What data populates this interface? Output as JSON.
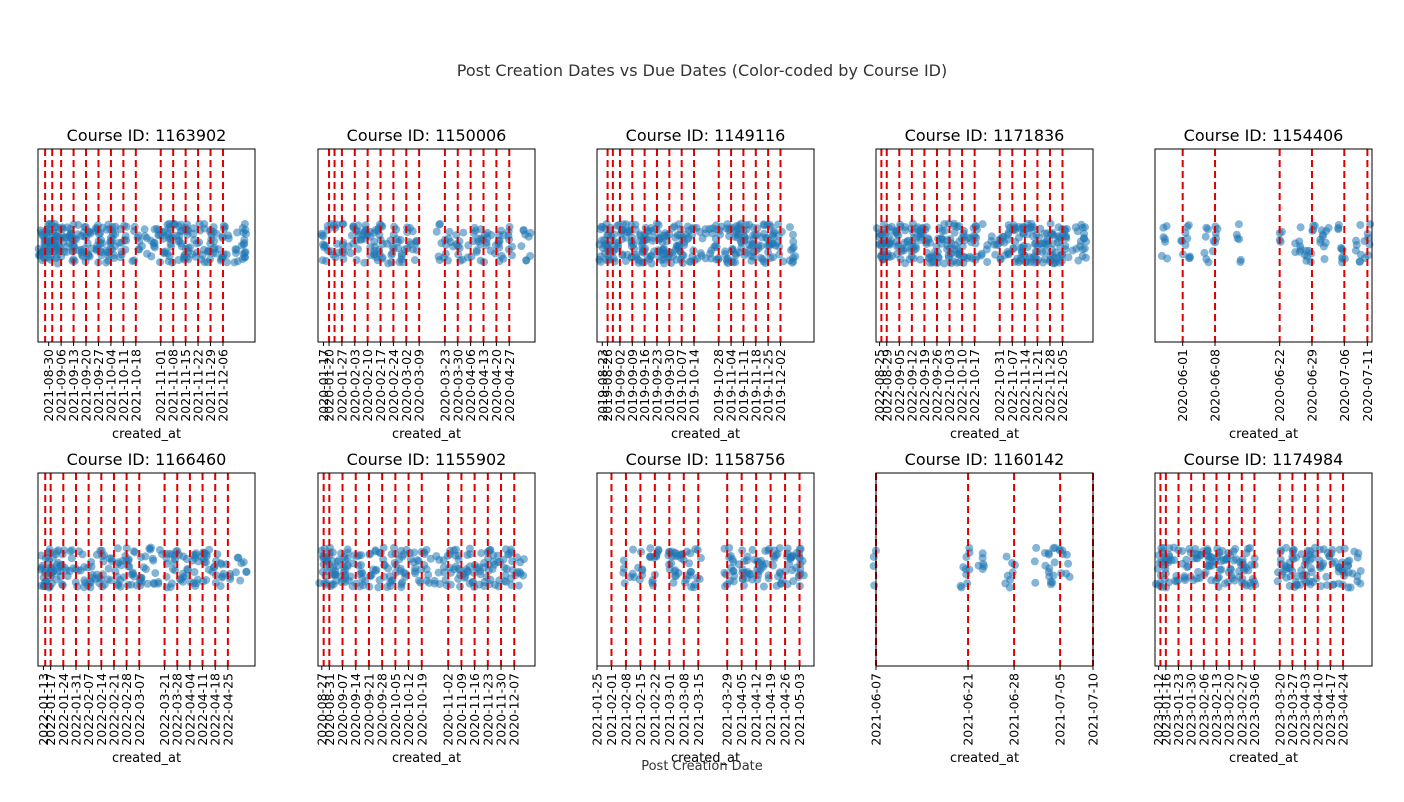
{
  "figure": {
    "title": "Post Creation Dates vs Due Dates (Color-coded by Course ID)",
    "xlabel": "Post Creation Date",
    "point_color": "#1f77b4",
    "due_line_color": "#e00000"
  },
  "chart_data": [
    {
      "type": "scatter",
      "title": "Course ID: 1163902",
      "xlabel": "created_at",
      "x_range": [
        "2021-08-24",
        "2021-12-24"
      ],
      "ticks": [
        "2021-08-30",
        "2021-09-06",
        "2021-09-13",
        "2021-09-20",
        "2021-09-27",
        "2021-10-04",
        "2021-10-11",
        "2021-10-18",
        "2021-11-01",
        "2021-11-08",
        "2021-11-15",
        "2021-11-22",
        "2021-11-29",
        "2021-12-06"
      ],
      "due_dates": [
        "2021-08-28",
        "2021-09-01",
        "2021-09-06",
        "2021-09-13",
        "2021-09-20",
        "2021-09-27",
        "2021-10-04",
        "2021-10-11",
        "2021-10-18",
        "2021-11-01",
        "2021-11-08",
        "2021-11-15",
        "2021-11-22",
        "2021-11-29",
        "2021-12-06"
      ],
      "post_days": [
        "2021-08-25",
        "2021-08-26",
        "2021-08-27",
        "2021-08-28",
        "2021-08-29",
        "2021-08-30",
        "2021-08-31",
        "2021-09-01",
        "2021-09-02",
        "2021-09-03",
        "2021-09-04",
        "2021-09-06",
        "2021-09-07",
        "2021-09-08",
        "2021-09-10",
        "2021-09-12",
        "2021-09-13",
        "2021-09-14",
        "2021-09-16",
        "2021-09-19",
        "2021-09-20",
        "2021-09-21",
        "2021-09-24",
        "2021-09-26",
        "2021-09-27",
        "2021-09-28",
        "2021-10-01",
        "2021-10-03",
        "2021-10-04",
        "2021-10-06",
        "2021-10-10",
        "2021-10-11",
        "2021-10-13",
        "2021-10-16",
        "2021-10-18",
        "2021-10-20",
        "2021-10-23",
        "2021-10-27",
        "2021-10-30",
        "2021-11-01",
        "2021-11-03",
        "2021-11-05",
        "2021-11-07",
        "2021-11-08",
        "2021-11-10",
        "2021-11-12",
        "2021-11-14",
        "2021-11-15",
        "2021-11-17",
        "2021-11-20",
        "2021-11-22",
        "2021-11-24",
        "2021-11-28",
        "2021-11-29",
        "2021-12-01",
        "2021-12-05",
        "2021-12-06",
        "2021-12-08",
        "2021-12-14",
        "2021-12-17",
        "2021-12-18",
        "2021-12-19"
      ]
    },
    {
      "type": "scatter",
      "title": "Course ID: 1150006",
      "xlabel": "created_at",
      "x_range": [
        "2020-01-14",
        "2020-05-11"
      ],
      "ticks": [
        "2020-01-17",
        "2020-01-20",
        "2020-01-27",
        "2020-02-03",
        "2020-02-10",
        "2020-02-17",
        "2020-02-24",
        "2020-03-02",
        "2020-03-09",
        "2020-03-23",
        "2020-03-30",
        "2020-04-06",
        "2020-04-13",
        "2020-04-20",
        "2020-04-27"
      ],
      "due_dates": [
        "2020-01-20",
        "2020-01-23",
        "2020-01-27",
        "2020-02-03",
        "2020-02-10",
        "2020-02-17",
        "2020-02-24",
        "2020-03-02",
        "2020-03-09",
        "2020-03-23",
        "2020-03-30",
        "2020-04-06",
        "2020-04-13",
        "2020-04-20",
        "2020-04-27"
      ],
      "post_days": [
        "2020-01-17",
        "2020-01-18",
        "2020-01-20",
        "2020-01-22",
        "2020-01-24",
        "2020-01-27",
        "2020-01-29",
        "2020-02-01",
        "2020-02-03",
        "2020-02-05",
        "2020-02-08",
        "2020-02-10",
        "2020-02-13",
        "2020-02-15",
        "2020-02-17",
        "2020-02-19",
        "2020-02-22",
        "2020-02-24",
        "2020-02-27",
        "2020-03-01",
        "2020-03-04",
        "2020-03-07",
        "2020-03-20",
        "2020-03-23",
        "2020-03-26",
        "2020-03-30",
        "2020-04-02",
        "2020-04-06",
        "2020-04-09",
        "2020-04-13",
        "2020-04-16",
        "2020-04-20",
        "2020-04-23",
        "2020-04-27",
        "2020-05-05",
        "2020-05-07"
      ]
    },
    {
      "type": "scatter",
      "title": "Course ID: 1149116",
      "xlabel": "created_at",
      "x_range": [
        "2019-08-20",
        "2019-12-21"
      ],
      "ticks": [
        "2019-08-23",
        "2019-08-26",
        "2019-09-02",
        "2019-09-09",
        "2019-09-16",
        "2019-09-23",
        "2019-09-30",
        "2019-10-07",
        "2019-10-14",
        "2019-10-28",
        "2019-11-04",
        "2019-11-11",
        "2019-11-18",
        "2019-11-25",
        "2019-12-02"
      ],
      "due_dates": [
        "2019-08-26",
        "2019-08-29",
        "2019-09-02",
        "2019-09-09",
        "2019-09-16",
        "2019-09-23",
        "2019-09-30",
        "2019-10-07",
        "2019-10-14",
        "2019-10-28",
        "2019-11-04",
        "2019-11-11",
        "2019-11-18",
        "2019-11-25",
        "2019-12-02"
      ],
      "post_days": [
        "2019-08-22",
        "2019-08-23",
        "2019-08-24",
        "2019-08-25",
        "2019-08-26",
        "2019-08-27",
        "2019-08-28",
        "2019-08-29",
        "2019-08-31",
        "2019-09-02",
        "2019-09-03",
        "2019-09-05",
        "2019-09-07",
        "2019-09-09",
        "2019-09-10",
        "2019-09-12",
        "2019-09-14",
        "2019-09-16",
        "2019-09-17",
        "2019-09-19",
        "2019-09-21",
        "2019-09-23",
        "2019-09-24",
        "2019-09-26",
        "2019-09-28",
        "2019-09-30",
        "2019-10-01",
        "2019-10-03",
        "2019-10-05",
        "2019-10-07",
        "2019-10-08",
        "2019-10-10",
        "2019-10-12",
        "2019-10-14",
        "2019-10-16",
        "2019-10-19",
        "2019-10-22",
        "2019-10-25",
        "2019-10-27",
        "2019-10-28",
        "2019-10-30",
        "2019-11-01",
        "2019-11-03",
        "2019-11-04",
        "2019-11-06",
        "2019-11-08",
        "2019-11-10",
        "2019-11-11",
        "2019-11-13",
        "2019-11-15",
        "2019-11-17",
        "2019-11-18",
        "2019-11-20",
        "2019-11-22",
        "2019-11-24",
        "2019-11-25",
        "2019-11-27",
        "2019-11-29",
        "2019-12-01",
        "2019-12-02",
        "2019-12-08",
        "2019-12-09"
      ]
    },
    {
      "type": "scatter",
      "title": "Course ID: 1171836",
      "xlabel": "created_at",
      "x_range": [
        "2022-08-23",
        "2022-12-22"
      ],
      "ticks": [
        "2022-08-25",
        "2022-08-29",
        "2022-09-05",
        "2022-09-12",
        "2022-09-19",
        "2022-09-26",
        "2022-10-03",
        "2022-10-10",
        "2022-10-17",
        "2022-10-31",
        "2022-11-07",
        "2022-11-14",
        "2022-11-21",
        "2022-11-28",
        "2022-12-05"
      ],
      "due_dates": [
        "2022-08-26",
        "2022-08-29",
        "2022-09-05",
        "2022-09-12",
        "2022-09-19",
        "2022-09-26",
        "2022-10-03",
        "2022-10-10",
        "2022-10-17",
        "2022-10-31",
        "2022-11-07",
        "2022-11-14",
        "2022-11-21",
        "2022-11-28",
        "2022-12-05"
      ],
      "post_days": [
        "2022-08-25",
        "2022-08-26",
        "2022-08-27",
        "2022-08-28",
        "2022-08-29",
        "2022-08-30",
        "2022-08-31",
        "2022-09-02",
        "2022-09-04",
        "2022-09-05",
        "2022-09-07",
        "2022-09-09",
        "2022-09-11",
        "2022-09-12",
        "2022-09-14",
        "2022-09-16",
        "2022-09-18",
        "2022-09-19",
        "2022-09-21",
        "2022-09-23",
        "2022-09-25",
        "2022-09-26",
        "2022-09-28",
        "2022-09-30",
        "2022-10-02",
        "2022-10-03",
        "2022-10-05",
        "2022-10-07",
        "2022-10-09",
        "2022-10-10",
        "2022-10-12",
        "2022-10-14",
        "2022-10-16",
        "2022-10-17",
        "2022-10-20",
        "2022-10-25",
        "2022-10-28",
        "2022-10-31",
        "2022-11-02",
        "2022-11-04",
        "2022-11-06",
        "2022-11-07",
        "2022-11-09",
        "2022-11-11",
        "2022-11-13",
        "2022-11-14",
        "2022-11-16",
        "2022-11-18",
        "2022-11-20",
        "2022-11-21",
        "2022-11-23",
        "2022-11-25",
        "2022-11-27",
        "2022-11-28",
        "2022-11-30",
        "2022-12-02",
        "2022-12-04",
        "2022-12-05",
        "2022-12-08",
        "2022-12-12",
        "2022-12-15",
        "2022-12-17"
      ]
    },
    {
      "type": "scatter",
      "title": "Course ID: 1154406",
      "xlabel": "created_at",
      "x_range": [
        "2020-05-26",
        "2020-07-12"
      ],
      "ticks": [
        "2020-06-01",
        "2020-06-08",
        "2020-06-22",
        "2020-06-29",
        "2020-07-06",
        "2020-07-11"
      ],
      "due_dates": [
        "2020-06-01",
        "2020-06-08",
        "2020-06-22",
        "2020-06-29",
        "2020-07-06",
        "2020-07-11"
      ],
      "post_days": [
        "2020-05-28",
        "2020-06-01",
        "2020-06-02",
        "2020-06-06",
        "2020-06-08",
        "2020-06-13",
        "2020-06-22",
        "2020-06-26",
        "2020-06-28",
        "2020-06-29",
        "2020-07-01",
        "2020-07-02",
        "2020-07-05",
        "2020-07-06",
        "2020-07-09",
        "2020-07-11"
      ]
    },
    {
      "type": "scatter",
      "title": "Course ID: 1166460",
      "xlabel": "created_at",
      "x_range": [
        "2022-01-10",
        "2022-05-10"
      ],
      "ticks": [
        "2022-01-13",
        "2022-01-17",
        "2022-01-24",
        "2022-01-31",
        "2022-02-07",
        "2022-02-14",
        "2022-02-21",
        "2022-02-28",
        "2022-03-07",
        "2022-03-21",
        "2022-03-28",
        "2022-04-04",
        "2022-04-11",
        "2022-04-18",
        "2022-04-25"
      ],
      "due_dates": [
        "2022-01-14",
        "2022-01-17",
        "2022-01-24",
        "2022-01-31",
        "2022-02-07",
        "2022-02-14",
        "2022-02-21",
        "2022-02-28",
        "2022-03-07",
        "2022-03-21",
        "2022-03-28",
        "2022-04-04",
        "2022-04-11",
        "2022-04-18",
        "2022-04-25"
      ],
      "post_days": [
        "2022-01-13",
        "2022-01-14",
        "2022-01-15",
        "2022-01-16",
        "2022-01-17",
        "2022-01-18",
        "2022-01-20",
        "2022-01-22",
        "2022-01-24",
        "2022-01-26",
        "2022-01-28",
        "2022-01-31",
        "2022-02-02",
        "2022-02-04",
        "2022-02-07",
        "2022-02-09",
        "2022-02-11",
        "2022-02-14",
        "2022-02-16",
        "2022-02-18",
        "2022-02-21",
        "2022-02-23",
        "2022-02-25",
        "2022-02-28",
        "2022-03-02",
        "2022-03-04",
        "2022-03-07",
        "2022-03-09",
        "2022-03-12",
        "2022-03-16",
        "2022-03-19",
        "2022-03-21",
        "2022-03-23",
        "2022-03-25",
        "2022-03-28",
        "2022-03-30",
        "2022-04-01",
        "2022-04-04",
        "2022-04-06",
        "2022-04-08",
        "2022-04-11",
        "2022-04-13",
        "2022-04-15",
        "2022-04-18",
        "2022-04-20",
        "2022-04-22",
        "2022-04-25",
        "2022-05-01",
        "2022-05-05"
      ]
    },
    {
      "type": "scatter",
      "title": "Course ID: 1155902",
      "xlabel": "created_at",
      "x_range": [
        "2020-08-25",
        "2020-12-18"
      ],
      "ticks": [
        "2020-08-27",
        "2020-08-31",
        "2020-09-07",
        "2020-09-14",
        "2020-09-21",
        "2020-09-28",
        "2020-10-05",
        "2020-10-12",
        "2020-10-19",
        "2020-11-02",
        "2020-11-09",
        "2020-11-16",
        "2020-11-23",
        "2020-11-30",
        "2020-12-07"
      ],
      "due_dates": [
        "2020-08-28",
        "2020-08-31",
        "2020-09-07",
        "2020-09-14",
        "2020-09-21",
        "2020-09-28",
        "2020-10-05",
        "2020-10-12",
        "2020-10-19",
        "2020-11-02",
        "2020-11-09",
        "2020-11-16",
        "2020-11-23",
        "2020-11-30",
        "2020-12-07"
      ],
      "post_days": [
        "2020-08-27",
        "2020-08-28",
        "2020-08-29",
        "2020-08-30",
        "2020-08-31",
        "2020-09-01",
        "2020-09-03",
        "2020-09-05",
        "2020-09-07",
        "2020-09-09",
        "2020-09-11",
        "2020-09-14",
        "2020-09-16",
        "2020-09-18",
        "2020-09-21",
        "2020-09-23",
        "2020-09-25",
        "2020-09-28",
        "2020-09-30",
        "2020-10-02",
        "2020-10-05",
        "2020-10-07",
        "2020-10-09",
        "2020-10-12",
        "2020-10-14",
        "2020-10-16",
        "2020-10-19",
        "2020-10-23",
        "2020-10-27",
        "2020-10-30",
        "2020-11-02",
        "2020-11-04",
        "2020-11-06",
        "2020-11-09",
        "2020-11-11",
        "2020-11-13",
        "2020-11-16",
        "2020-11-18",
        "2020-11-20",
        "2020-11-23",
        "2020-11-25",
        "2020-11-27",
        "2020-11-30",
        "2020-12-02",
        "2020-12-04",
        "2020-12-07",
        "2020-12-09",
        "2020-12-11"
      ]
    },
    {
      "type": "scatter",
      "title": "Course ID: 1158756",
      "xlabel": "created_at",
      "x_range": [
        "2021-01-25",
        "2021-05-10"
      ],
      "ticks": [
        "2021-01-25",
        "2021-02-01",
        "2021-02-08",
        "2021-02-15",
        "2021-02-22",
        "2021-03-01",
        "2021-03-08",
        "2021-03-15",
        "2021-03-29",
        "2021-04-05",
        "2021-04-12",
        "2021-04-19",
        "2021-04-26",
        "2021-05-03"
      ],
      "due_dates": [
        "2021-02-01",
        "2021-02-08",
        "2021-02-15",
        "2021-02-22",
        "2021-03-01",
        "2021-03-08",
        "2021-03-15",
        "2021-03-29",
        "2021-04-05",
        "2021-04-12",
        "2021-04-19",
        "2021-04-26",
        "2021-05-03"
      ],
      "post_days": [
        "2021-02-08",
        "2021-02-11",
        "2021-02-15",
        "2021-02-20",
        "2021-02-22",
        "2021-02-24",
        "2021-03-01",
        "2021-03-03",
        "2021-03-05",
        "2021-03-08",
        "2021-03-10",
        "2021-03-12",
        "2021-03-15",
        "2021-03-29",
        "2021-03-31",
        "2021-04-02",
        "2021-04-05",
        "2021-04-07",
        "2021-04-09",
        "2021-04-12",
        "2021-04-14",
        "2021-04-16",
        "2021-04-19",
        "2021-04-21",
        "2021-04-23",
        "2021-04-26",
        "2021-04-28",
        "2021-04-30",
        "2021-05-02",
        "2021-05-03",
        "2021-05-04"
      ]
    },
    {
      "type": "scatter",
      "title": "Course ID: 1160142",
      "xlabel": "created_at",
      "x_range": [
        "2021-06-07",
        "2021-07-10"
      ],
      "ticks": [
        "2021-06-07",
        "2021-06-21",
        "2021-06-28",
        "2021-07-05",
        "2021-07-10"
      ],
      "due_dates": [
        "2021-06-07",
        "2021-06-21",
        "2021-06-28",
        "2021-07-05",
        "2021-07-10"
      ],
      "post_days": [
        "2021-06-07",
        "2021-06-20",
        "2021-06-21",
        "2021-06-23",
        "2021-06-27",
        "2021-06-28",
        "2021-07-01",
        "2021-07-03",
        "2021-07-04",
        "2021-07-05",
        "2021-07-06"
      ]
    },
    {
      "type": "scatter",
      "title": "Course ID: 1174984",
      "xlabel": "created_at",
      "x_range": [
        "2023-01-10",
        "2023-05-10"
      ],
      "ticks": [
        "2023-01-12",
        "2023-01-16",
        "2023-01-23",
        "2023-01-30",
        "2023-02-06",
        "2023-02-13",
        "2023-02-20",
        "2023-02-27",
        "2023-03-06",
        "2023-03-20",
        "2023-03-27",
        "2023-04-03",
        "2023-04-10",
        "2023-04-17",
        "2023-04-24"
      ],
      "due_dates": [
        "2023-01-13",
        "2023-01-16",
        "2023-01-23",
        "2023-01-30",
        "2023-02-06",
        "2023-02-13",
        "2023-02-20",
        "2023-02-27",
        "2023-03-06",
        "2023-03-20",
        "2023-03-27",
        "2023-04-03",
        "2023-04-10",
        "2023-04-17",
        "2023-04-24"
      ],
      "post_days": [
        "2023-01-12",
        "2023-01-13",
        "2023-01-14",
        "2023-01-15",
        "2023-01-16",
        "2023-01-17",
        "2023-01-19",
        "2023-01-21",
        "2023-01-23",
        "2023-01-25",
        "2023-01-27",
        "2023-01-30",
        "2023-02-01",
        "2023-02-03",
        "2023-02-06",
        "2023-02-08",
        "2023-02-10",
        "2023-02-13",
        "2023-02-15",
        "2023-02-17",
        "2023-02-20",
        "2023-02-22",
        "2023-02-24",
        "2023-02-27",
        "2023-03-01",
        "2023-03-03",
        "2023-03-06",
        "2023-03-20",
        "2023-03-22",
        "2023-03-24",
        "2023-03-27",
        "2023-03-29",
        "2023-03-31",
        "2023-04-03",
        "2023-04-05",
        "2023-04-07",
        "2023-04-10",
        "2023-04-12",
        "2023-04-14",
        "2023-04-17",
        "2023-04-19",
        "2023-04-21",
        "2023-04-24",
        "2023-04-26",
        "2023-04-28",
        "2023-05-01",
        "2023-05-03"
      ]
    }
  ]
}
